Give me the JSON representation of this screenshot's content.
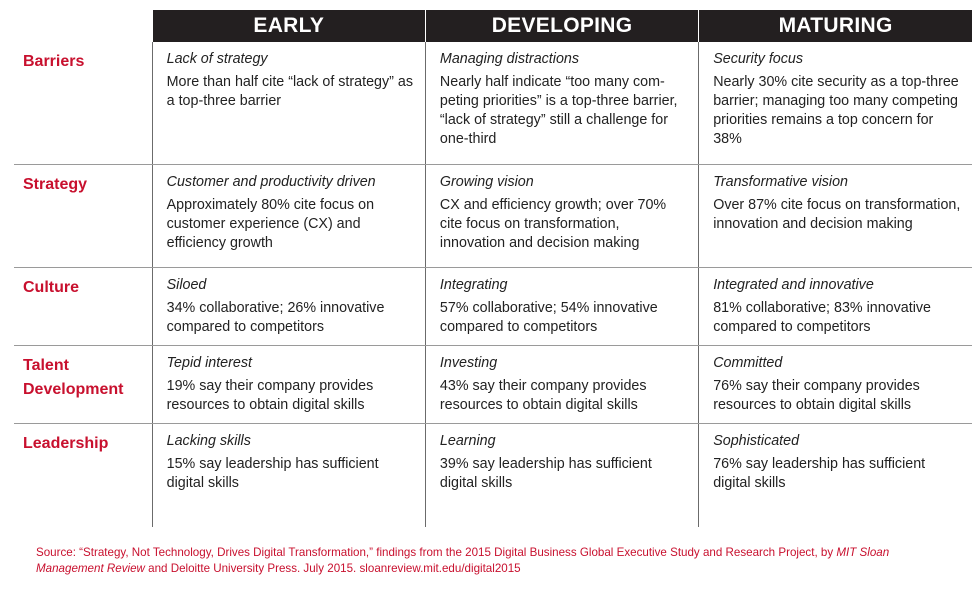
{
  "header": {
    "stages": [
      "EARLY",
      "DEVELOPING",
      "MATURING"
    ]
  },
  "rows": [
    {
      "label": "Barriers",
      "cells": [
        {
          "title": "Lack of strategy",
          "text": "More than half cite “lack of strategy” as a top-three barrier"
        },
        {
          "title": "Managing distractions",
          "text": "Nearly half indicate “too many com-peting priorities” is a top-three barrier, “lack of strategy” still a challenge for one-third"
        },
        {
          "title": "Security focus",
          "text": "Nearly 30% cite security as a top-three barrier; managing too many competing priorities remains a top concern for 38%"
        }
      ]
    },
    {
      "label": "Strategy",
      "cells": [
        {
          "title": "Customer and productivity driven",
          "text": "Approximately 80% cite focus on customer experience (CX) and efficiency growth"
        },
        {
          "title": "Growing vision",
          "text": "CX and efficiency growth; over 70% cite focus on transformation, innovation and decision making"
        },
        {
          "title": "Transformative vision",
          "text": "Over 87% cite focus on transformation, innovation and decision making"
        }
      ]
    },
    {
      "label": "Culture",
      "cells": [
        {
          "title": "Siloed",
          "text": "34% collaborative; 26% innovative compared to competitors"
        },
        {
          "title": "Integrating",
          "text": "57% collaborative; 54% innovative compared to competitors"
        },
        {
          "title": "Integrated and innovative",
          "text": "81% collaborative; 83% innovative compared to competitors"
        }
      ]
    },
    {
      "label": "Talent Development",
      "cells": [
        {
          "title": "Tepid interest",
          "text": "19% say their company provides resources to obtain digital skills"
        },
        {
          "title": "Investing",
          "text": "43% say their company provides resources to obtain digital skills"
        },
        {
          "title": "Committed",
          "text": "76% say their company provides resources to obtain digital skills"
        }
      ]
    },
    {
      "label": "Leadership",
      "cells": [
        {
          "title": "Lacking skills",
          "text": "15% say leadership has sufficient digital skills"
        },
        {
          "title": "Learning",
          "text": "39% say leadership has sufficient digital skills"
        },
        {
          "title": "Sophisticated",
          "text": "76% say leadership has sufficient digital skills"
        }
      ]
    }
  ],
  "source": {
    "part1": "Source: “Strategy, Not Technology, Drives Digital Transformation,” findings from the 2015 Digital Business Global Executive Study and Research Project, by ",
    "publication": "MIT Sloan Management Review",
    "part2": " and Deloitte University Press. July 2015. sloanreview.mit.edu/digital2015"
  },
  "colors": {
    "header_bg": "#231f20",
    "header_text": "#ffffff",
    "accent_red": "#c8102e",
    "body_text": "#222222"
  }
}
